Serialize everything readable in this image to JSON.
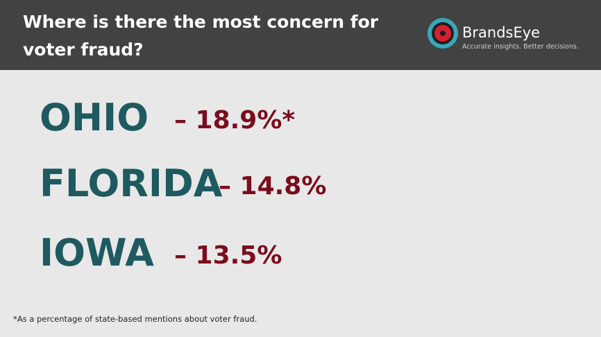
{
  "header": {
    "title": "Where is there the most concern for voter fraud?",
    "background_color": "#424242"
  },
  "brand": {
    "name": "BrandsEye",
    "tagline": "Accurate insights. Better decisions.",
    "logo_icon": "target-circle-icon",
    "logo_colors": {
      "outer_ring": "#3aa6b9",
      "inner_ring": "#1e1e1e",
      "center": "#d6202f"
    }
  },
  "rows": [
    {
      "state": "OHIO",
      "value": "– 18.9%*"
    },
    {
      "state": "FLORIDA",
      "value": "– 14.8%"
    },
    {
      "state": "IOWA",
      "value": "– 13.5%"
    }
  ],
  "colors": {
    "state_text": "#1e5a5f",
    "value_text": "#7a0d1d",
    "page_background": "#e8e8e8"
  },
  "footnote": "*As a percentage of state-based mentions about voter fraud."
}
